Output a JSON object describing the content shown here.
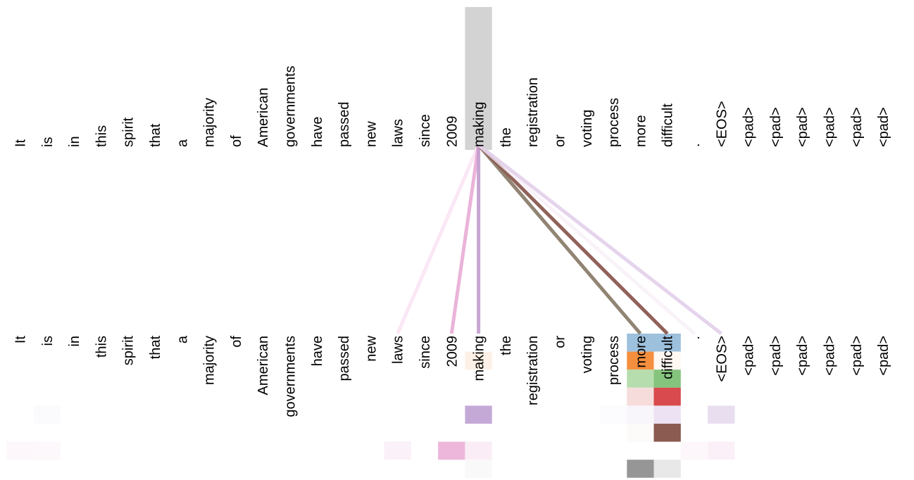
{
  "tokens": [
    "It",
    "is",
    "in",
    "this",
    "spirit",
    "that",
    "a",
    "majority",
    "of",
    "American",
    "governments",
    "have",
    "passed",
    "new",
    "laws",
    "since",
    "2009",
    "making",
    "the",
    "registration",
    "or",
    "voting",
    "process",
    "more",
    "difficult",
    ".",
    "<EOS>",
    "<pad>",
    "<pad>",
    "<pad>",
    "<pad>",
    "<pad>",
    "<pad>"
  ],
  "selected_index": 17,
  "selected_color": "#d3d3d3",
  "head_colors": [
    "#9dc0dd",
    "#f58f3d",
    "#b5ddad",
    "#d84a4d",
    "#c4a9d7",
    "#8b5a51",
    "#edb7dc",
    "#969696"
  ],
  "edges": [
    {
      "target": 14,
      "color": "#fbe4f4",
      "opacity": 0.9
    },
    {
      "target": 16,
      "color": "#e8a6d3",
      "opacity": 0.85
    },
    {
      "target": 17,
      "color": "#c19ccd",
      "opacity": 0.9
    },
    {
      "target": 23,
      "color": "#8b7d6c",
      "opacity": 0.95
    },
    {
      "target": 24,
      "color": "#8b5a51",
      "opacity": 0.95
    },
    {
      "target": 25,
      "color": "#f6eef6",
      "opacity": 0.7
    },
    {
      "target": 26,
      "color": "#e2cfea",
      "opacity": 0.9
    }
  ],
  "cells": [
    {
      "token": 23,
      "row": 0,
      "color": "#9dc0dd"
    },
    {
      "token": 24,
      "row": 0,
      "color": "#9dc0dd"
    },
    {
      "token": 17,
      "row": 1,
      "color": "#fdf1e7"
    },
    {
      "token": 23,
      "row": 1,
      "color": "#f58f3d"
    },
    {
      "token": 24,
      "row": 1,
      "color": "#fff8f2"
    },
    {
      "token": 23,
      "row": 2,
      "color": "#b5ddad"
    },
    {
      "token": 24,
      "row": 2,
      "color": "#85c47d"
    },
    {
      "token": 23,
      "row": 3,
      "color": "#f7dcdc"
    },
    {
      "token": 24,
      "row": 3,
      "color": "#d84a4d"
    },
    {
      "token": 1,
      "row": 4,
      "color": "#fbfbfd"
    },
    {
      "token": 17,
      "row": 4,
      "color": "#c4a9d7"
    },
    {
      "token": 22,
      "row": 4,
      "color": "#fcfbfd"
    },
    {
      "token": 23,
      "row": 4,
      "color": "#f8f6fb"
    },
    {
      "token": 24,
      "row": 4,
      "color": "#ede2f3"
    },
    {
      "token": 26,
      "row": 4,
      "color": "#e9def0"
    },
    {
      "token": 23,
      "row": 5,
      "color": "#fcfbfa"
    },
    {
      "token": 24,
      "row": 5,
      "color": "#8b5a51"
    },
    {
      "token": 0,
      "row": 6,
      "color": "#fdf6fb"
    },
    {
      "token": 1,
      "row": 6,
      "color": "#fcf8fb"
    },
    {
      "token": 14,
      "row": 6,
      "color": "#fbf1f8"
    },
    {
      "token": 16,
      "row": 6,
      "color": "#edb7dc"
    },
    {
      "token": 17,
      "row": 6,
      "color": "#fbedf6"
    },
    {
      "token": 25,
      "row": 6,
      "color": "#fdf7fb"
    },
    {
      "token": 26,
      "row": 6,
      "color": "#fbf0f7"
    },
    {
      "token": 17,
      "row": 7,
      "color": "#f9f9f9"
    },
    {
      "token": 23,
      "row": 7,
      "color": "#969696"
    },
    {
      "token": 24,
      "row": 7,
      "color": "#e8e8e8"
    }
  ]
}
